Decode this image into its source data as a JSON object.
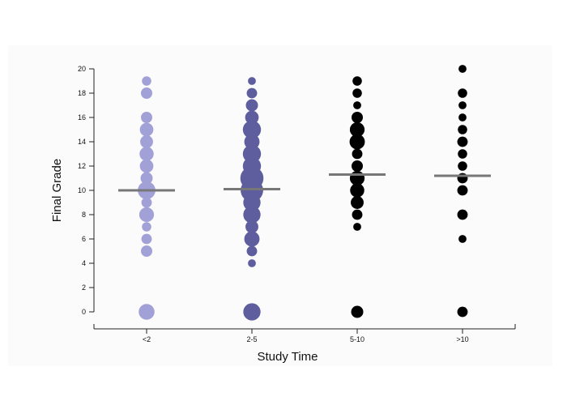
{
  "chart_data": {
    "type": "scatter",
    "xlabel": "Study Time",
    "ylabel": "Final Grade",
    "categories": [
      "<2",
      "2-5",
      "5-10",
      ">10"
    ],
    "ylim": [
      0,
      20
    ],
    "yticks": [
      0,
      2,
      4,
      6,
      8,
      10,
      12,
      14,
      16,
      18,
      20
    ],
    "grid": false,
    "colors": [
      "#a1a1d8",
      "#5e5e9e",
      "#000000",
      "#000000"
    ],
    "mean_line_color": "#777777",
    "means": [
      10.0,
      10.1,
      11.3,
      11.2
    ],
    "series": [
      {
        "category": "<2",
        "points": [
          {
            "y": 0,
            "count": 11
          },
          {
            "y": 5,
            "count": 4
          },
          {
            "y": 6,
            "count": 3
          },
          {
            "y": 7,
            "count": 2
          },
          {
            "y": 8,
            "count": 9
          },
          {
            "y": 9,
            "count": 3
          },
          {
            "y": 10,
            "count": 15
          },
          {
            "y": 11,
            "count": 5
          },
          {
            "y": 12,
            "count": 7
          },
          {
            "y": 13,
            "count": 8
          },
          {
            "y": 14,
            "count": 6
          },
          {
            "y": 15,
            "count": 7
          },
          {
            "y": 16,
            "count": 4
          },
          {
            "y": 18,
            "count": 4
          },
          {
            "y": 19,
            "count": 2
          }
        ]
      },
      {
        "category": "2-5",
        "points": [
          {
            "y": 0,
            "count": 14
          },
          {
            "y": 4,
            "count": 1
          },
          {
            "y": 5,
            "count": 3
          },
          {
            "y": 6,
            "count": 10
          },
          {
            "y": 7,
            "count": 6
          },
          {
            "y": 8,
            "count": 14
          },
          {
            "y": 9,
            "count": 14
          },
          {
            "y": 10,
            "count": 28
          },
          {
            "y": 11,
            "count": 30
          },
          {
            "y": 12,
            "count": 16
          },
          {
            "y": 13,
            "count": 16
          },
          {
            "y": 14,
            "count": 10
          },
          {
            "y": 15,
            "count": 16
          },
          {
            "y": 16,
            "count": 7
          },
          {
            "y": 17,
            "count": 5
          },
          {
            "y": 18,
            "count": 3
          },
          {
            "y": 19,
            "count": 1
          }
        ]
      },
      {
        "category": "5-10",
        "points": [
          {
            "y": 0,
            "count": 5
          },
          {
            "y": 7,
            "count": 1
          },
          {
            "y": 8,
            "count": 3
          },
          {
            "y": 9,
            "count": 6
          },
          {
            "y": 10,
            "count": 8
          },
          {
            "y": 11,
            "count": 9
          },
          {
            "y": 12,
            "count": 4
          },
          {
            "y": 13,
            "count": 3
          },
          {
            "y": 14,
            "count": 10
          },
          {
            "y": 15,
            "count": 9
          },
          {
            "y": 16,
            "count": 4
          },
          {
            "y": 17,
            "count": 1
          },
          {
            "y": 18,
            "count": 2
          },
          {
            "y": 19,
            "count": 2
          }
        ]
      },
      {
        "category": ">10",
        "points": [
          {
            "y": 0,
            "count": 3
          },
          {
            "y": 6,
            "count": 1
          },
          {
            "y": 8,
            "count": 3
          },
          {
            "y": 10,
            "count": 3
          },
          {
            "y": 11,
            "count": 3
          },
          {
            "y": 12,
            "count": 2
          },
          {
            "y": 13,
            "count": 2
          },
          {
            "y": 14,
            "count": 3
          },
          {
            "y": 15,
            "count": 2
          },
          {
            "y": 16,
            "count": 1
          },
          {
            "y": 17,
            "count": 1
          },
          {
            "y": 18,
            "count": 2
          },
          {
            "y": 20,
            "count": 1
          }
        ]
      }
    ]
  }
}
